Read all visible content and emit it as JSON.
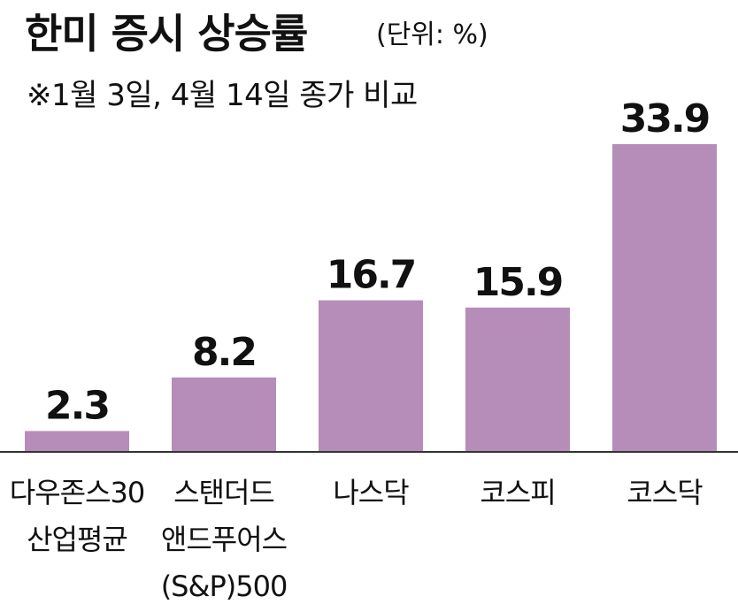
{
  "chart_data": {
    "type": "bar",
    "title": "한미 증시 상승률",
    "unit": "(단위: %)",
    "note": "※1월 3일, 4월 14일 종가 비교",
    "categories": [
      [
        "다우존스30",
        "산업평균"
      ],
      [
        "스탠더드",
        "앤드푸어스",
        "(S&P)500"
      ],
      [
        "나스닥"
      ],
      [
        "코스피"
      ],
      [
        "코스닥"
      ]
    ],
    "values": [
      2.3,
      8.2,
      16.7,
      15.9,
      33.9
    ],
    "data_labels": [
      "2.3",
      "8.2",
      "16.7",
      "15.9",
      "33.9"
    ],
    "ylim": [
      0,
      33.9
    ],
    "grid": false,
    "colors": {
      "bar": "#b68db8",
      "axis": "#333333",
      "text": "#111111"
    }
  }
}
